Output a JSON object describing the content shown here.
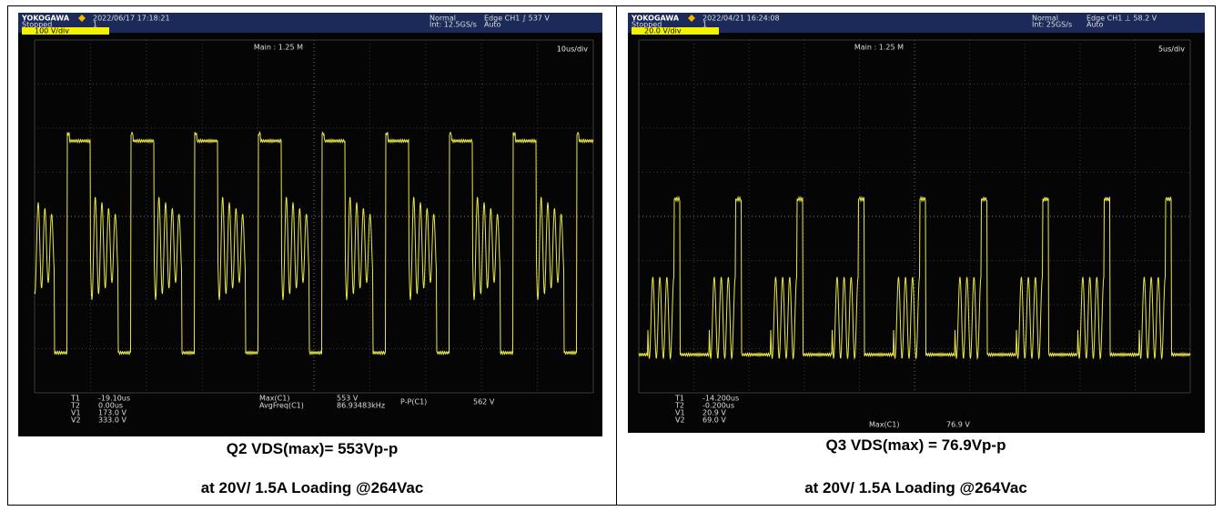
{
  "panels": [
    {
      "brand": "YOKOGAWA",
      "datetime": "2022/06/17 17:18:21",
      "status": "Stopped",
      "record": "1",
      "mode": "Normal",
      "sample": "Int: 12.5GS/s",
      "trigger": "Edge CH1 ∫ 537 V",
      "trigger_mode": "Auto",
      "channel": "100 V/div",
      "main": "Main : 1.25 M",
      "timebase": "10us/div",
      "readouts": [
        [
          "T1",
          "-19.10us"
        ],
        [
          "T2",
          "0.00us"
        ],
        [
          "V1",
          "173.0 V"
        ],
        [
          "V2",
          "333.0 V"
        ]
      ],
      "measurements": [
        [
          "Max(C1)",
          "553 V"
        ],
        [
          "AvgFreq(C1)",
          "86.93483kHz"
        ],
        [
          "P-P(C1)",
          "562 V"
        ]
      ],
      "caption": "Q2 VDS(max)= 553Vp-p",
      "condition": "at 20V/ 1.5A Loading @264Vac"
    },
    {
      "brand": "YOKOGAWA",
      "datetime": "2022/04/21 16:24:08",
      "status": "Stopped",
      "record": "1",
      "mode": "Normal",
      "sample": "Int: 25GS/s",
      "trigger": "Edge CH1 ⊥ 58.2 V",
      "trigger_mode": "Auto",
      "channel": "20.0 V/div",
      "main": "Main : 1.25 M",
      "timebase": "5us/div",
      "readouts": [
        [
          "T1",
          "-14.200us"
        ],
        [
          "T2",
          "-0.200us"
        ],
        [
          "V1",
          "20.9 V"
        ],
        [
          "V2",
          "69.0 V"
        ]
      ],
      "measurements": [
        [
          "Max(C1)",
          "76.9 V"
        ]
      ],
      "caption": "Q3 VDS(max) = 76.9Vp-p",
      "condition": "at 20V/ 1.5A Loading @264Vac"
    }
  ]
}
